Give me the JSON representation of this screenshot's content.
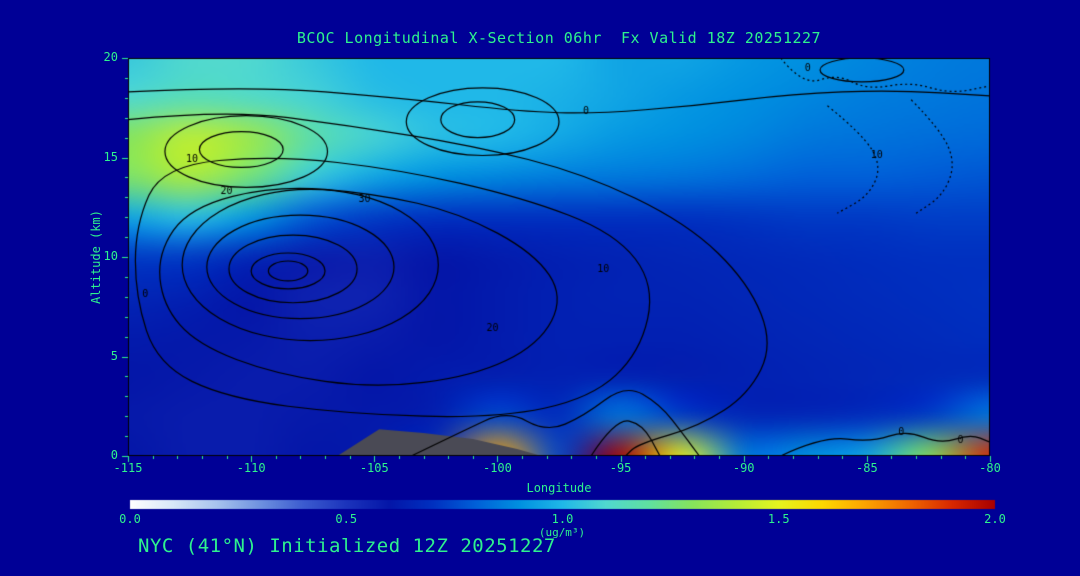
{
  "colors": {
    "background": "#000096",
    "text": "#2ef28e",
    "contour": "#000000",
    "terrain": "#4a4a55"
  },
  "header": {
    "title": "BCOC Longitudinal X-Section 06hr  Fx Valid 18Z 20251227"
  },
  "footer": {
    "text": "NYC (41°N) Initialized 12Z 20251227"
  },
  "axes": {
    "x": {
      "label": "Longitude",
      "ticks": [
        "-115",
        "-110",
        "-105",
        "-100",
        "-95",
        "-90",
        "-85",
        "-80"
      ]
    },
    "y": {
      "label": "Altitude (km)",
      "ticks": [
        "0",
        "5",
        "10",
        "15",
        "20"
      ]
    }
  },
  "colorbar": {
    "unit": "(ug/m³)",
    "ticks": [
      "0.0",
      "0.5",
      "1.0",
      "1.5",
      "2.0"
    ],
    "min": 0,
    "max": 2
  },
  "chart_data": {
    "type": "heatmap",
    "title": "BCOC Longitudinal X-Section 06hr Fx Valid 18Z 20251227",
    "subtitle": "NYC (41°N) Initialized 12Z 20251227",
    "xlabel": "Longitude",
    "ylabel": "Altitude (km)",
    "x_range": [
      -115,
      -80
    ],
    "y_range": [
      0,
      20
    ],
    "colorbar_range": [
      0,
      2
    ],
    "units": "ug/m3",
    "colormap": [
      [
        0.0,
        "#ffffff"
      ],
      [
        0.1,
        "#d8e8f8"
      ],
      [
        0.2,
        "#a8c4ee"
      ],
      [
        0.3,
        "#6f92e0"
      ],
      [
        0.4,
        "#3c5cd0"
      ],
      [
        0.5,
        "#1c34bc"
      ],
      [
        0.6,
        "#0416a8"
      ],
      [
        0.7,
        "#0030c0"
      ],
      [
        0.8,
        "#0060d8"
      ],
      [
        0.9,
        "#0090e0"
      ],
      [
        1.0,
        "#20b8e8"
      ],
      [
        1.1,
        "#50d8d0"
      ],
      [
        1.2,
        "#60e0a0"
      ],
      [
        1.3,
        "#86e45c"
      ],
      [
        1.4,
        "#b4ec38"
      ],
      [
        1.5,
        "#e6f41e"
      ],
      [
        1.6,
        "#fcd800"
      ],
      [
        1.7,
        "#fca400"
      ],
      [
        1.8,
        "#f06800"
      ],
      [
        1.9,
        "#d82800"
      ],
      [
        2.0,
        "#a80000"
      ]
    ],
    "grid": {
      "lons": [
        -115,
        -112.5,
        -110,
        -107.5,
        -105,
        -102.5,
        -100,
        -97.5,
        -95,
        -92.5,
        -90,
        -87.5,
        -85,
        -82.5,
        -80
      ],
      "alts": [
        20,
        18,
        16,
        14,
        12,
        10,
        8,
        6,
        4,
        2,
        0
      ],
      "values": [
        [
          1.05,
          1.1,
          1.1,
          1.05,
          1.0,
          1.0,
          1.0,
          1.0,
          0.95,
          0.95,
          0.92,
          0.9,
          0.88,
          0.86,
          0.85
        ],
        [
          1.1,
          1.15,
          1.12,
          1.08,
          1.02,
          1.0,
          1.0,
          0.98,
          0.95,
          0.92,
          0.9,
          0.88,
          0.86,
          0.85,
          0.84
        ],
        [
          1.3,
          1.42,
          1.35,
          1.18,
          1.08,
          1.02,
          1.0,
          0.96,
          0.92,
          0.9,
          0.88,
          0.85,
          0.84,
          0.83,
          0.82
        ],
        [
          1.28,
          1.38,
          1.25,
          1.05,
          0.95,
          0.9,
          0.88,
          0.86,
          0.85,
          0.84,
          0.82,
          0.8,
          0.8,
          0.79,
          0.78
        ],
        [
          0.95,
          1.02,
          0.92,
          0.78,
          0.72,
          0.7,
          0.7,
          0.7,
          0.7,
          0.7,
          0.71,
          0.72,
          0.72,
          0.73,
          0.73
        ],
        [
          0.72,
          0.72,
          0.66,
          0.58,
          0.57,
          0.6,
          0.62,
          0.64,
          0.65,
          0.66,
          0.67,
          0.68,
          0.69,
          0.7,
          0.7
        ],
        [
          0.66,
          0.64,
          0.6,
          0.56,
          0.56,
          0.6,
          0.62,
          0.64,
          0.65,
          0.65,
          0.66,
          0.67,
          0.68,
          0.69,
          0.7
        ],
        [
          0.62,
          0.61,
          0.59,
          0.57,
          0.58,
          0.6,
          0.62,
          0.64,
          0.64,
          0.64,
          0.65,
          0.66,
          0.67,
          0.68,
          0.69
        ],
        [
          0.6,
          0.59,
          0.58,
          0.58,
          0.6,
          0.62,
          0.63,
          0.64,
          0.64,
          0.63,
          0.64,
          0.65,
          0.66,
          0.67,
          0.68
        ],
        [
          0.59,
          0.58,
          0.58,
          0.59,
          0.61,
          0.63,
          0.75,
          0.68,
          0.85,
          0.72,
          0.66,
          0.66,
          0.68,
          0.72,
          0.85
        ],
        [
          0.6,
          0.58,
          0.58,
          0.6,
          0.62,
          0.7,
          1.7,
          0.75,
          2.0,
          1.5,
          0.85,
          0.9,
          0.95,
          1.3,
          1.9
        ]
      ]
    },
    "terrain": [
      [
        -106.5,
        0
      ],
      [
        -104.8,
        1.35
      ],
      [
        -103.0,
        1.15
      ],
      [
        -101.0,
        0.85
      ],
      [
        -99.2,
        0.35
      ],
      [
        -98.2,
        0
      ]
    ],
    "contours": [
      {
        "style": "solid",
        "shape": "ellipse",
        "cx": -108.5,
        "cy": 9.3,
        "rx": 0.8,
        "ry": 0.5
      },
      {
        "style": "solid",
        "shape": "ellipse",
        "cx": -108.5,
        "cy": 9.3,
        "rx": 1.5,
        "ry": 0.9
      },
      {
        "style": "solid",
        "shape": "ellipse",
        "cx": -108.3,
        "cy": 9.4,
        "rx": 2.6,
        "ry": 1.7
      },
      {
        "style": "solid",
        "shape": "ellipse",
        "cx": -108.0,
        "cy": 9.5,
        "rx": 3.8,
        "ry": 2.6
      },
      {
        "style": "solid",
        "shape": "ellipse",
        "cx": -107.6,
        "cy": 9.6,
        "rx": 5.2,
        "ry": 3.8
      },
      {
        "style": "solid",
        "shape": "path",
        "closed": true,
        "points": [
          [
            -112.5,
            12.5
          ],
          [
            -109,
            13.6
          ],
          [
            -105,
            13.2
          ],
          [
            -101.5,
            12.2
          ],
          [
            -98.5,
            10.2
          ],
          [
            -97.3,
            8.0
          ],
          [
            -98.3,
            5.6
          ],
          [
            -101,
            4.0
          ],
          [
            -105,
            3.4
          ],
          [
            -109,
            4.1
          ],
          [
            -112.2,
            5.6
          ],
          [
            -113.6,
            7.6
          ],
          [
            -113.8,
            10.2
          ]
        ]
      },
      {
        "style": "solid",
        "shape": "path",
        "closed": true,
        "points": [
          [
            -113.6,
            14.6
          ],
          [
            -109,
            15.1
          ],
          [
            -104,
            14.4
          ],
          [
            -99,
            13.0
          ],
          [
            -95.2,
            11.2
          ],
          [
            -93.6,
            8.6
          ],
          [
            -94.2,
            5.2
          ],
          [
            -96.2,
            2.9
          ],
          [
            -100,
            1.9
          ],
          [
            -106,
            2.1
          ],
          [
            -111,
            2.9
          ],
          [
            -113.8,
            4.6
          ],
          [
            -114.7,
            8.0
          ],
          [
            -114.7,
            11.6
          ]
        ]
      },
      {
        "style": "solid",
        "shape": "path",
        "closed": false,
        "points": [
          [
            -115,
            16.9
          ],
          [
            -111,
            17.4
          ],
          [
            -106,
            16.6
          ],
          [
            -101,
            15.6
          ],
          [
            -96.5,
            14.2
          ],
          [
            -92.3,
            11.7
          ],
          [
            -89.8,
            8.7
          ],
          [
            -88.8,
            5.6
          ],
          [
            -89.8,
            3.1
          ],
          [
            -91.8,
            1.5
          ],
          [
            -94.3,
            0.6
          ],
          [
            -94.8,
            0
          ]
        ]
      },
      {
        "style": "solid",
        "shape": "path",
        "closed": false,
        "points": [
          [
            -115,
            18.3
          ],
          [
            -110,
            18.6
          ],
          [
            -104,
            18.0
          ],
          [
            -99,
            17.3
          ],
          [
            -96,
            17.2
          ],
          [
            -92,
            17.6
          ],
          [
            -88,
            18.2
          ],
          [
            -84,
            18.4
          ],
          [
            -80,
            18.1
          ]
        ]
      },
      {
        "style": "solid",
        "shape": "ellipse",
        "cx": -110.4,
        "cy": 15.4,
        "rx": 1.7,
        "ry": 0.9
      },
      {
        "style": "solid",
        "shape": "ellipse",
        "cx": -110.2,
        "cy": 15.3,
        "rx": 3.3,
        "ry": 1.8
      },
      {
        "style": "solid",
        "shape": "ellipse",
        "cx": -100.8,
        "cy": 16.9,
        "rx": 1.5,
        "ry": 0.9
      },
      {
        "style": "solid",
        "shape": "ellipse",
        "cx": -100.6,
        "cy": 16.8,
        "rx": 3.1,
        "ry": 1.7
      },
      {
        "style": "solid",
        "shape": "ellipse",
        "cx": -85.2,
        "cy": 19.4,
        "rx": 1.7,
        "ry": 0.6
      },
      {
        "style": "solid",
        "shape": "path",
        "closed": false,
        "points": [
          [
            -103.5,
            0
          ],
          [
            -101.5,
            1.2
          ],
          [
            -99.6,
            2.3
          ],
          [
            -98,
            1.2
          ],
          [
            -96.5,
            2.0
          ],
          [
            -94.8,
            3.6
          ],
          [
            -93.4,
            2.6
          ],
          [
            -92.4,
            1.0
          ],
          [
            -91.8,
            0
          ]
        ]
      },
      {
        "style": "solid",
        "shape": "path",
        "closed": false,
        "points": [
          [
            -96.2,
            0
          ],
          [
            -95.2,
            1.9
          ],
          [
            -94.1,
            1.6
          ],
          [
            -93.4,
            0
          ]
        ]
      },
      {
        "style": "solid",
        "shape": "path",
        "closed": false,
        "points": [
          [
            -88.5,
            0
          ],
          [
            -86.8,
            1.0
          ],
          [
            -84.8,
            0.7
          ],
          [
            -83.4,
            1.3
          ],
          [
            -82.0,
            0.6
          ],
          [
            -80.8,
            1.1
          ],
          [
            -80,
            0.7
          ]
        ]
      },
      {
        "style": "dotted",
        "shape": "path",
        "closed": false,
        "points": [
          [
            -86.6,
            17.6
          ],
          [
            -85.2,
            16.2
          ],
          [
            -84.4,
            14.6
          ],
          [
            -84.9,
            13.1
          ],
          [
            -86.2,
            12.2
          ]
        ]
      },
      {
        "style": "dotted",
        "shape": "path",
        "closed": false,
        "points": [
          [
            -83.2,
            17.9
          ],
          [
            -82.0,
            16.4
          ],
          [
            -81.4,
            14.7
          ],
          [
            -81.9,
            13.1
          ],
          [
            -83.0,
            12.2
          ]
        ]
      },
      {
        "style": "dotted",
        "shape": "path",
        "closed": false,
        "points": [
          [
            -88.5,
            20
          ],
          [
            -87.6,
            18.6
          ],
          [
            -86.2,
            19.2
          ],
          [
            -85.0,
            18.4
          ],
          [
            -83.2,
            18.8
          ],
          [
            -81.6,
            18.2
          ],
          [
            -80,
            18.6
          ]
        ]
      }
    ],
    "contour_labels": [
      {
        "text": "10",
        "lon": -112.4,
        "alt": 14.9
      },
      {
        "text": "20",
        "lon": -111.0,
        "alt": 13.3
      },
      {
        "text": "30",
        "lon": -105.4,
        "alt": 12.9
      },
      {
        "text": "20",
        "lon": -100.2,
        "alt": 6.4
      },
      {
        "text": "10",
        "lon": -95.7,
        "alt": 9.4
      },
      {
        "text": "0",
        "lon": -96.4,
        "alt": 17.3
      },
      {
        "text": "0",
        "lon": -87.4,
        "alt": 19.5
      },
      {
        "text": "0",
        "lon": -114.3,
        "alt": 8.1
      },
      {
        "text": "10",
        "lon": -84.6,
        "alt": 15.1
      },
      {
        "text": "0",
        "lon": -83.6,
        "alt": 1.2
      },
      {
        "text": "0",
        "lon": -81.2,
        "alt": 0.8
      }
    ]
  }
}
